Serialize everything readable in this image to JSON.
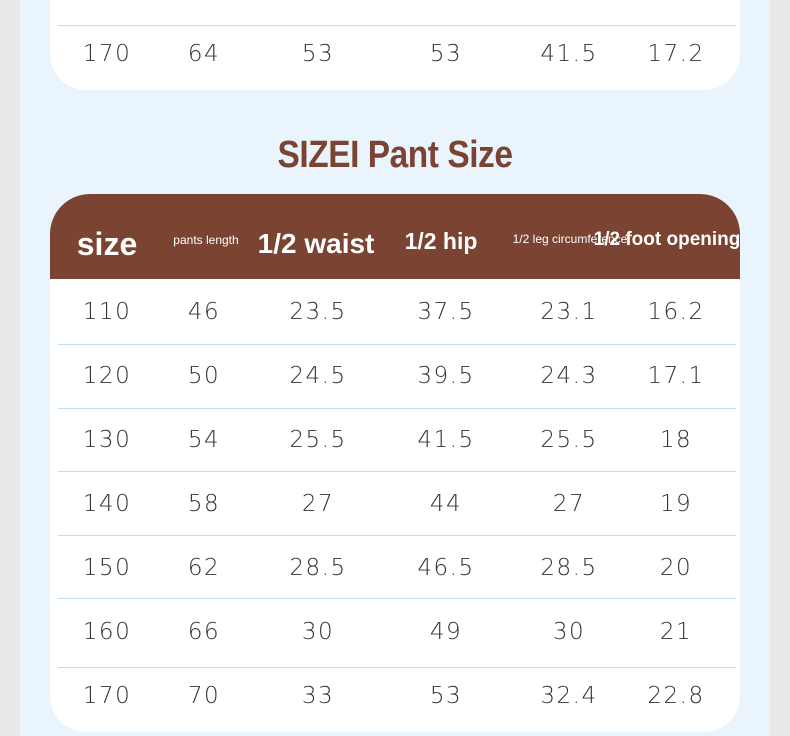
{
  "top_table": {
    "last_row": [
      "170",
      "64",
      "53",
      "53",
      "41.5",
      "17.2"
    ]
  },
  "pant_table": {
    "title": "SIZEI Pant Size",
    "headers": [
      "size",
      "pants length",
      "1/2 waist",
      "1/2 hip",
      "1/2 leg circumference",
      "1/2 foot opening"
    ],
    "rows": [
      [
        "110",
        "46",
        "23.5",
        "37.5",
        "23.1",
        "16.2"
      ],
      [
        "120",
        "50",
        "24.5",
        "39.5",
        "24.3",
        "17.1"
      ],
      [
        "130",
        "54",
        "25.5",
        "41.5",
        "25.5",
        "18"
      ],
      [
        "140",
        "58",
        "27",
        "44",
        "27",
        "19"
      ],
      [
        "150",
        "62",
        "28.5",
        "46.5",
        "28.5",
        "20"
      ],
      [
        "160",
        "66",
        "30",
        "49",
        "30",
        "21"
      ],
      [
        "170",
        "70",
        "33",
        "53",
        "32.4",
        "22.8"
      ]
    ]
  },
  "colors": {
    "accent": "#7a4332",
    "panel": "#eaf4fd",
    "divider": "#c9dcef"
  }
}
